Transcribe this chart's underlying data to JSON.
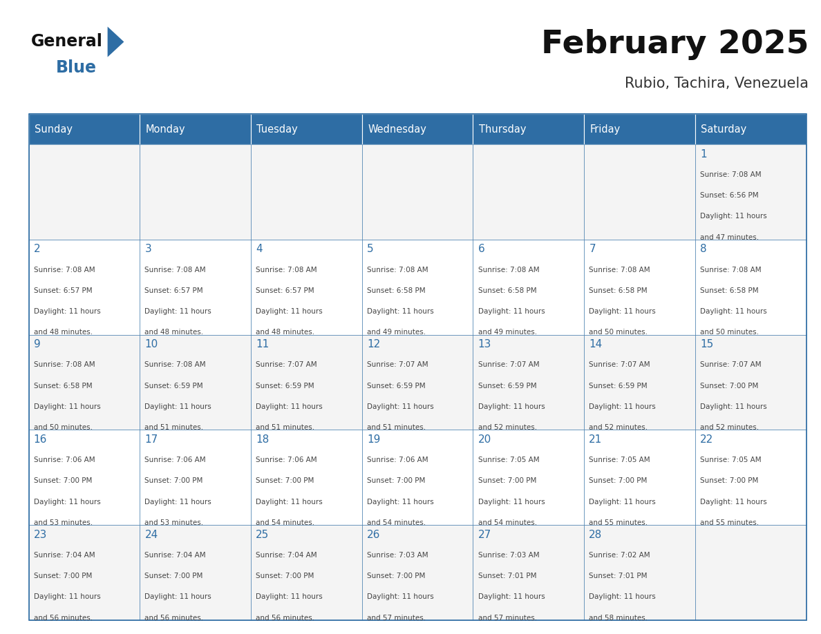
{
  "title": "February 2025",
  "subtitle": "Rubio, Tachira, Venezuela",
  "header_bg_color": "#2E6DA4",
  "header_text_color": "#FFFFFF",
  "day_number_color": "#2E6DA4",
  "cell_text_color": "#444444",
  "border_color": "#2E6DA4",
  "days_of_week": [
    "Sunday",
    "Monday",
    "Tuesday",
    "Wednesday",
    "Thursday",
    "Friday",
    "Saturday"
  ],
  "weeks": [
    [
      {
        "day": null,
        "sunrise": null,
        "sunset": null,
        "daylight": null
      },
      {
        "day": null,
        "sunrise": null,
        "sunset": null,
        "daylight": null
      },
      {
        "day": null,
        "sunrise": null,
        "sunset": null,
        "daylight": null
      },
      {
        "day": null,
        "sunrise": null,
        "sunset": null,
        "daylight": null
      },
      {
        "day": null,
        "sunrise": null,
        "sunset": null,
        "daylight": null
      },
      {
        "day": null,
        "sunrise": null,
        "sunset": null,
        "daylight": null
      },
      {
        "day": 1,
        "sunrise": "7:08 AM",
        "sunset": "6:56 PM",
        "daylight": "11 hours\nand 47 minutes."
      }
    ],
    [
      {
        "day": 2,
        "sunrise": "7:08 AM",
        "sunset": "6:57 PM",
        "daylight": "11 hours\nand 48 minutes."
      },
      {
        "day": 3,
        "sunrise": "7:08 AM",
        "sunset": "6:57 PM",
        "daylight": "11 hours\nand 48 minutes."
      },
      {
        "day": 4,
        "sunrise": "7:08 AM",
        "sunset": "6:57 PM",
        "daylight": "11 hours\nand 48 minutes."
      },
      {
        "day": 5,
        "sunrise": "7:08 AM",
        "sunset": "6:58 PM",
        "daylight": "11 hours\nand 49 minutes."
      },
      {
        "day": 6,
        "sunrise": "7:08 AM",
        "sunset": "6:58 PM",
        "daylight": "11 hours\nand 49 minutes."
      },
      {
        "day": 7,
        "sunrise": "7:08 AM",
        "sunset": "6:58 PM",
        "daylight": "11 hours\nand 50 minutes."
      },
      {
        "day": 8,
        "sunrise": "7:08 AM",
        "sunset": "6:58 PM",
        "daylight": "11 hours\nand 50 minutes."
      }
    ],
    [
      {
        "day": 9,
        "sunrise": "7:08 AM",
        "sunset": "6:58 PM",
        "daylight": "11 hours\nand 50 minutes."
      },
      {
        "day": 10,
        "sunrise": "7:08 AM",
        "sunset": "6:59 PM",
        "daylight": "11 hours\nand 51 minutes."
      },
      {
        "day": 11,
        "sunrise": "7:07 AM",
        "sunset": "6:59 PM",
        "daylight": "11 hours\nand 51 minutes."
      },
      {
        "day": 12,
        "sunrise": "7:07 AM",
        "sunset": "6:59 PM",
        "daylight": "11 hours\nand 51 minutes."
      },
      {
        "day": 13,
        "sunrise": "7:07 AM",
        "sunset": "6:59 PM",
        "daylight": "11 hours\nand 52 minutes."
      },
      {
        "day": 14,
        "sunrise": "7:07 AM",
        "sunset": "6:59 PM",
        "daylight": "11 hours\nand 52 minutes."
      },
      {
        "day": 15,
        "sunrise": "7:07 AM",
        "sunset": "7:00 PM",
        "daylight": "11 hours\nand 52 minutes."
      }
    ],
    [
      {
        "day": 16,
        "sunrise": "7:06 AM",
        "sunset": "7:00 PM",
        "daylight": "11 hours\nand 53 minutes."
      },
      {
        "day": 17,
        "sunrise": "7:06 AM",
        "sunset": "7:00 PM",
        "daylight": "11 hours\nand 53 minutes."
      },
      {
        "day": 18,
        "sunrise": "7:06 AM",
        "sunset": "7:00 PM",
        "daylight": "11 hours\nand 54 minutes."
      },
      {
        "day": 19,
        "sunrise": "7:06 AM",
        "sunset": "7:00 PM",
        "daylight": "11 hours\nand 54 minutes."
      },
      {
        "day": 20,
        "sunrise": "7:05 AM",
        "sunset": "7:00 PM",
        "daylight": "11 hours\nand 54 minutes."
      },
      {
        "day": 21,
        "sunrise": "7:05 AM",
        "sunset": "7:00 PM",
        "daylight": "11 hours\nand 55 minutes."
      },
      {
        "day": 22,
        "sunrise": "7:05 AM",
        "sunset": "7:00 PM",
        "daylight": "11 hours\nand 55 minutes."
      }
    ],
    [
      {
        "day": 23,
        "sunrise": "7:04 AM",
        "sunset": "7:00 PM",
        "daylight": "11 hours\nand 56 minutes."
      },
      {
        "day": 24,
        "sunrise": "7:04 AM",
        "sunset": "7:00 PM",
        "daylight": "11 hours\nand 56 minutes."
      },
      {
        "day": 25,
        "sunrise": "7:04 AM",
        "sunset": "7:00 PM",
        "daylight": "11 hours\nand 56 minutes."
      },
      {
        "day": 26,
        "sunrise": "7:03 AM",
        "sunset": "7:00 PM",
        "daylight": "11 hours\nand 57 minutes."
      },
      {
        "day": 27,
        "sunrise": "7:03 AM",
        "sunset": "7:01 PM",
        "daylight": "11 hours\nand 57 minutes."
      },
      {
        "day": 28,
        "sunrise": "7:02 AM",
        "sunset": "7:01 PM",
        "daylight": "11 hours\nand 58 minutes."
      },
      {
        "day": null,
        "sunrise": null,
        "sunset": null,
        "daylight": null
      }
    ]
  ],
  "fig_width": 11.88,
  "fig_height": 9.18
}
